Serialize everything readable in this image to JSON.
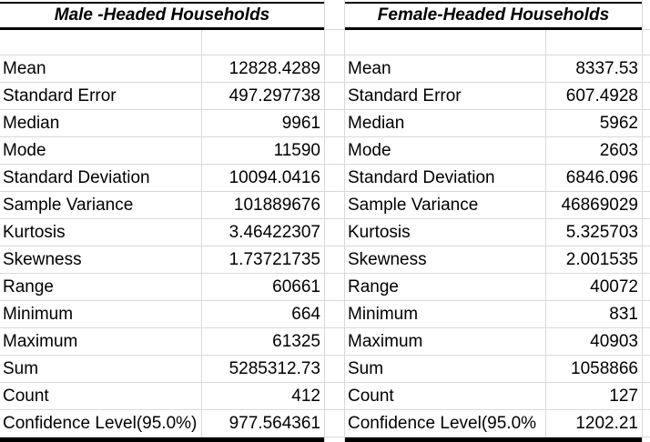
{
  "colors": {
    "grid_line": "#d9d9d9",
    "table_border": "#000000",
    "text": "#000000",
    "background": "#ffffff"
  },
  "tables": [
    {
      "title": "Male -Headed Households",
      "rows": [
        {
          "label": "Mean",
          "value": "12828.4289"
        },
        {
          "label": "Standard Error",
          "value": "497.297738"
        },
        {
          "label": "Median",
          "value": "9961"
        },
        {
          "label": "Mode",
          "value": "11590"
        },
        {
          "label": "Standard Deviation",
          "value": "10094.0416"
        },
        {
          "label": "Sample Variance",
          "value": "101889676"
        },
        {
          "label": "Kurtosis",
          "value": "3.46422307"
        },
        {
          "label": "Skewness",
          "value": "1.73721735"
        },
        {
          "label": "Range",
          "value": "60661"
        },
        {
          "label": "Minimum",
          "value": "664"
        },
        {
          "label": "Maximum",
          "value": "61325"
        },
        {
          "label": "Sum",
          "value": "5285312.73"
        },
        {
          "label": "Count",
          "value": "412"
        },
        {
          "label": "Confidence Level(95.0%)",
          "value": "977.564361"
        }
      ]
    },
    {
      "title": "Female-Headed Households",
      "rows": [
        {
          "label": "Mean",
          "value": "8337.53"
        },
        {
          "label": "Standard Error",
          "value": "607.4928"
        },
        {
          "label": "Median",
          "value": "5962"
        },
        {
          "label": "Mode",
          "value": "2603"
        },
        {
          "label": "Standard Deviation",
          "value": "6846.096"
        },
        {
          "label": "Sample Variance",
          "value": "46869029"
        },
        {
          "label": "Kurtosis",
          "value": "5.325703"
        },
        {
          "label": "Skewness",
          "value": "2.001535"
        },
        {
          "label": "Range",
          "value": "40072"
        },
        {
          "label": "Minimum",
          "value": "831"
        },
        {
          "label": "Maximum",
          "value": "40903"
        },
        {
          "label": "Sum",
          "value": "1058866"
        },
        {
          "label": "Count",
          "value": "127"
        },
        {
          "label": "Confidence Level(95.0%",
          "value": "1202.21"
        }
      ]
    }
  ]
}
